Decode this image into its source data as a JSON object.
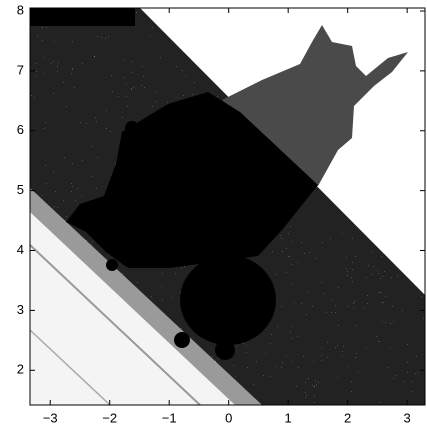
{
  "chart_data": {
    "type": "image",
    "xlim": [
      -3.34,
      3.3
    ],
    "ylim": [
      1.42,
      8.05
    ],
    "xticks": [
      {
        "value": -3,
        "label": "−3"
      },
      {
        "value": -2,
        "label": "−2"
      },
      {
        "value": -1,
        "label": "−1"
      },
      0,
      1,
      2,
      3
    ],
    "yticks": [
      2,
      3,
      4,
      5,
      6,
      7,
      8
    ]
  }
}
